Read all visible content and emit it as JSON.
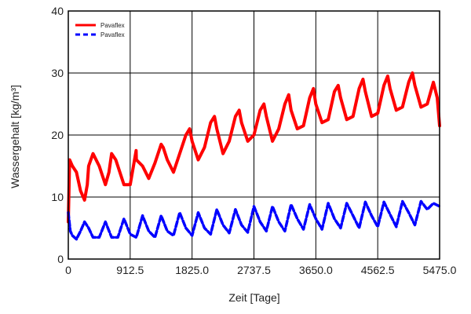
{
  "chart_data": {
    "type": "line",
    "title": "",
    "xlabel": "Zeit [Tage]",
    "ylabel": "Wassergehalt [kg/m³]",
    "xlim": [
      0,
      5475
    ],
    "ylim": [
      0,
      40
    ],
    "x_ticks": [
      "0",
      "912.5",
      "1825.0",
      "2737.5",
      "3650.0",
      "4562.5",
      "5475.0"
    ],
    "y_ticks": [
      "0",
      "10",
      "20",
      "30",
      "40"
    ],
    "grid": true,
    "legend_position": "top-left",
    "series": [
      {
        "name": "Pavaflex",
        "color": "#ff0000",
        "style": "solid",
        "x": [
          0,
          20,
          60,
          120,
          180,
          240,
          280,
          300,
          365,
          456,
          548,
          600,
          639,
          700,
          730,
          821,
          913,
          1000,
          1004,
          1095,
          1186,
          1278,
          1369,
          1400,
          1460,
          1551,
          1643,
          1734,
          1790,
          1825,
          1916,
          2008,
          2099,
          2155,
          2190,
          2281,
          2373,
          2464,
          2520,
          2555,
          2646,
          2738,
          2829,
          2885,
          2920,
          3011,
          3103,
          3194,
          3250,
          3285,
          3376,
          3468,
          3559,
          3615,
          3650,
          3741,
          3833,
          3924,
          3980,
          4015,
          4106,
          4198,
          4289,
          4345,
          4380,
          4471,
          4563,
          4654,
          4710,
          4745,
          4836,
          4928,
          5019,
          5075,
          5110,
          5201,
          5293,
          5384,
          5440,
          5475
        ],
        "values": [
          6,
          16,
          15,
          14,
          11,
          9.5,
          12,
          15,
          17,
          15,
          12,
          14,
          17,
          16,
          15,
          12,
          12,
          17.5,
          16,
          15,
          13,
          15.5,
          18.5,
          18,
          16,
          14,
          17,
          20,
          21,
          19,
          16,
          18,
          22,
          23,
          21,
          17,
          19,
          23,
          24,
          22,
          19,
          20,
          24,
          25,
          23,
          19,
          21,
          25,
          26.5,
          24,
          21,
          21.5,
          26,
          27.5,
          25,
          22,
          22.5,
          27,
          28,
          26,
          22.5,
          23,
          27.5,
          29,
          27,
          23,
          23.5,
          28,
          29.5,
          27.5,
          24,
          24.5,
          28.5,
          30,
          28,
          24.5,
          25,
          28.5,
          26,
          21.5
        ]
      },
      {
        "name": "Pavaflex",
        "color": "#0000ff",
        "style": "dashed",
        "x": [
          0,
          30,
          60,
          120,
          180,
          240,
          300,
          365,
          456,
          548,
          639,
          730,
          821,
          913,
          1004,
          1095,
          1186,
          1278,
          1369,
          1460,
          1551,
          1643,
          1734,
          1825,
          1916,
          2008,
          2099,
          2190,
          2281,
          2373,
          2464,
          2555,
          2646,
          2738,
          2829,
          2920,
          3011,
          3103,
          3194,
          3285,
          3376,
          3468,
          3559,
          3650,
          3741,
          3833,
          3924,
          4015,
          4106,
          4198,
          4289,
          4380,
          4471,
          4563,
          4654,
          4745,
          4836,
          4928,
          5019,
          5110,
          5201,
          5293,
          5384,
          5475
        ],
        "values": [
          7.5,
          4.5,
          3.8,
          3.2,
          4.5,
          6,
          5,
          3.5,
          3.5,
          6,
          3.5,
          3.5,
          6.5,
          4,
          3.5,
          7,
          4.5,
          3.5,
          7,
          4.5,
          3.8,
          7.5,
          5,
          3.8,
          7.5,
          5,
          4,
          8,
          5.5,
          4.2,
          8,
          5.5,
          4.3,
          8.5,
          6,
          4.5,
          8.5,
          6,
          4.5,
          8.8,
          6.5,
          4.8,
          8.8,
          6.5,
          4.8,
          9,
          6.5,
          5,
          9,
          7,
          5,
          9.2,
          7,
          5.2,
          9.2,
          7.2,
          5.2,
          9.3,
          7.5,
          5.5,
          9.3,
          8,
          9,
          8.5
        ]
      }
    ]
  }
}
